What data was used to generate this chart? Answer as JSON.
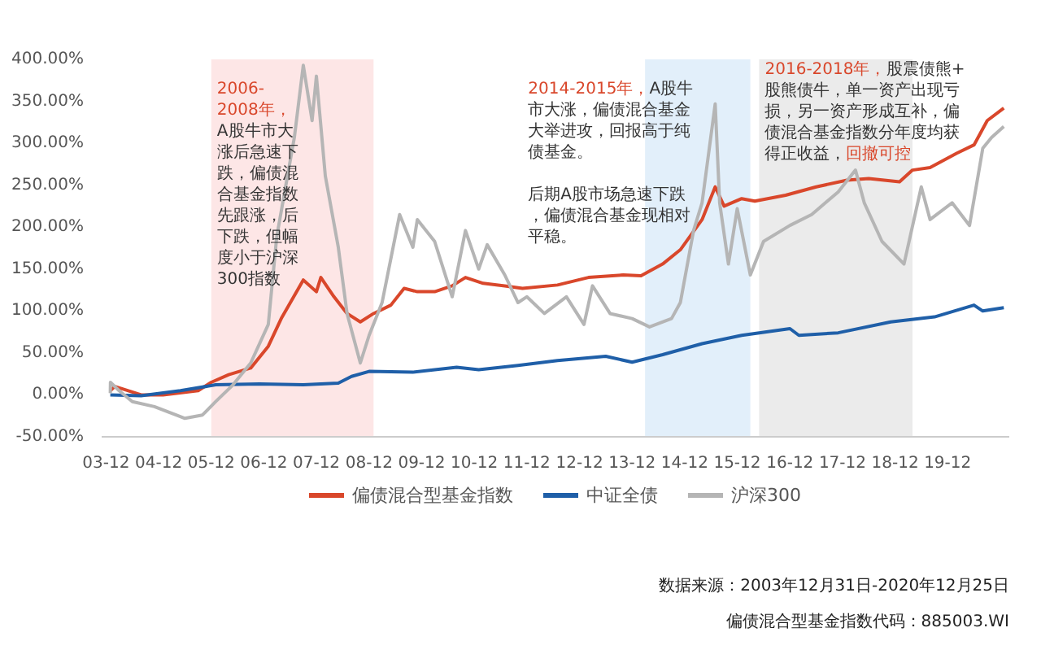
{
  "chart_data": {
    "type": "line",
    "x": [
      "2003-12-31",
      "2004-02",
      "2004-08",
      "2005-01",
      "2005-09",
      "2005-12",
      "2006-04",
      "2006-09",
      "2007-01",
      "2007-04",
      "2007-09",
      "2007-12",
      "2008-01",
      "2008-04",
      "2008-07",
      "2008-10",
      "2009-01",
      "2009-05",
      "2009-08",
      "2009-11",
      "2010-03",
      "2010-07",
      "2010-10",
      "2011-02",
      "2011-07",
      "2011-11",
      "2012-07",
      "2013-02",
      "2013-10",
      "2014-02",
      "2014-07",
      "2014-11",
      "2015-04",
      "2015-07",
      "2015-09",
      "2016-01",
      "2016-04",
      "2016-11",
      "2017-06",
      "2018-01",
      "2018-06",
      "2019-01",
      "2019-04",
      "2019-08",
      "2020-02",
      "2020-06",
      "2020-09",
      "2020-12-25"
    ],
    "series": [
      {
        "name": "偏债混合型基金指数",
        "color": "#d9472b",
        "values": [
          5,
          10,
          0,
          0,
          5,
          15,
          24,
          32,
          58,
          91,
          137,
          123,
          140,
          117,
          97,
          87,
          97,
          107,
          127,
          123,
          123,
          130,
          140,
          133,
          130,
          127,
          131,
          140,
          143,
          142,
          156,
          173,
          209,
          248,
          225,
          234,
          231,
          238,
          248,
          256,
          258,
          254,
          268,
          271,
          288,
          298,
          327,
          342
        ]
      },
      {
        "name": "中证全债",
        "color": "#1f5fa8",
        "x": [
          "2003-12-31",
          "2004-08",
          "2005-05",
          "2006-01",
          "2006-11",
          "2007-09",
          "2008-05",
          "2008-08",
          "2008-12",
          "2009-10",
          "2010-08",
          "2011-01",
          "2011-10",
          "2012-07",
          "2013-06",
          "2013-12",
          "2014-07",
          "2015-04",
          "2016-01",
          "2016-12",
          "2017-02",
          "2017-11",
          "2018-11",
          "2019-09",
          "2020-06",
          "2020-08",
          "2020-12-25"
        ],
        "values": [
          0,
          -1,
          5,
          12,
          13,
          12,
          14,
          22,
          28,
          27,
          33,
          30,
          35,
          41,
          46,
          39,
          48,
          61,
          71,
          79,
          71,
          74,
          87,
          93,
          107,
          100,
          104
        ]
      },
      {
        "name": "沪深300",
        "color": "#b5b5b5",
        "x": [
          "2003-12-31",
          "2004-01",
          "2004-03",
          "2004-06",
          "2004-11",
          "2005-04",
          "2005-06",
          "2005-10",
          "2006-01",
          "2006-05",
          "2006-09",
          "2007-01",
          "2007-03",
          "2007-07",
          "2007-09",
          "2007-11",
          "2007-12",
          "2008-02",
          "2008-05",
          "2008-07",
          "2008-10",
          "2008-12",
          "2009-03",
          "2009-07",
          "2009-10",
          "2009-11",
          "2010-03",
          "2010-07",
          "2010-10",
          "2011-01",
          "2011-03",
          "2011-07",
          "2011-10",
          "2011-12",
          "2012-04",
          "2012-09",
          "2013-01",
          "2013-03",
          "2013-07",
          "2013-12",
          "2014-04",
          "2014-09",
          "2014-11",
          "2015-02",
          "2015-04",
          "2015-07",
          "2015-08",
          "2015-10",
          "2015-12",
          "2016-03",
          "2016-06",
          "2016-12",
          "2017-05",
          "2017-11",
          "2018-03",
          "2018-05",
          "2018-09",
          "2019-02",
          "2019-06",
          "2019-08",
          "2020-01",
          "2020-05",
          "2020-08",
          "2020-10",
          "2020-12-25"
        ],
        "values": [
          2,
          15,
          5,
          -8,
          -14,
          -24,
          -28,
          -24,
          -8,
          12,
          38,
          84,
          189,
          307,
          393,
          327,
          380,
          261,
          176,
          97,
          38,
          71,
          110,
          215,
          176,
          209,
          183,
          117,
          196,
          150,
          179,
          143,
          110,
          117,
          97,
          117,
          84,
          130,
          97,
          91,
          81,
          91,
          110,
          196,
          229,
          347,
          229,
          156,
          222,
          143,
          183,
          202,
          215,
          242,
          268,
          229,
          183,
          156,
          248,
          209,
          229,
          202,
          294,
          307,
          320
        ]
      }
    ],
    "xlim": [
      "2003-11",
      "2021-02"
    ],
    "xticks": [
      {
        "value": "2003-12",
        "label": "03-12"
      },
      {
        "value": "2004-12",
        "label": "04-12"
      },
      {
        "value": "2005-12",
        "label": "05-12"
      },
      {
        "value": "2006-12",
        "label": "06-12"
      },
      {
        "value": "2007-12",
        "label": "07-12"
      },
      {
        "value": "2008-12",
        "label": "08-12"
      },
      {
        "value": "2009-12",
        "label": "09-12"
      },
      {
        "value": "2010-12",
        "label": "10-12"
      },
      {
        "value": "2011-12",
        "label": "11-12"
      },
      {
        "value": "2012-12",
        "label": "12-12"
      },
      {
        "value": "2013-12",
        "label": "13-12"
      },
      {
        "value": "2014-12",
        "label": "14-12"
      },
      {
        "value": "2015-12",
        "label": "15-12"
      },
      {
        "value": "2016-12",
        "label": "16-12"
      },
      {
        "value": "2017-12",
        "label": "17-12"
      },
      {
        "value": "2018-12",
        "label": "18-12"
      },
      {
        "value": "2019-12",
        "label": "19-12"
      }
    ],
    "ylim": [
      -50,
      400
    ],
    "yticks": [
      {
        "value": -50,
        "label": "-50.00%"
      },
      {
        "value": 0,
        "label": "0.00%"
      },
      {
        "value": 50,
        "label": "50.00%"
      },
      {
        "value": 100,
        "label": "100.00%"
      },
      {
        "value": 150,
        "label": "150.00%"
      },
      {
        "value": 200,
        "label": "200.00%"
      },
      {
        "value": 250,
        "label": "250.00%"
      },
      {
        "value": 300,
        "label": "300.00%"
      },
      {
        "value": 350,
        "label": "350.00%"
      },
      {
        "value": 400,
        "label": "400.00%"
      }
    ],
    "bands": [
      {
        "axis": "x",
        "from": "2005-12",
        "to": "2009-01",
        "color": "#fde6e6"
      },
      {
        "axis": "x",
        "from": "2014-03",
        "to": "2016-03",
        "color": "#e2effa"
      },
      {
        "axis": "x",
        "from": "2016-05",
        "to": "2019-04",
        "color": "#ebebeb"
      }
    ],
    "annotations": [
      "2006-2008年，",
      "A股牛市大涨后急速下跌，偏债混合基金指数先跟涨，后下跌，但幅度小于沪深300指数",
      "2014-2015年，",
      "A股牛市大涨，偏债混合基金大举进攻，回报高于纯债基金。",
      "后期A股市场急速下跌，偏债混合基金现相对平稳。",
      "2016-2018年，",
      "股震债熊+股熊债牛，单一资产出现亏损，另一资产形成互补，偏债混合基金指数分年度均获得正收益，",
      "回撤可控",
      "数据来源：2003年12月31日-2020年12月25日",
      "偏债混合型基金指数代码：885003.WI"
    ],
    "grid": false,
    "legend": "bottom",
    "marker": "none",
    "line_style": "solid"
  }
}
